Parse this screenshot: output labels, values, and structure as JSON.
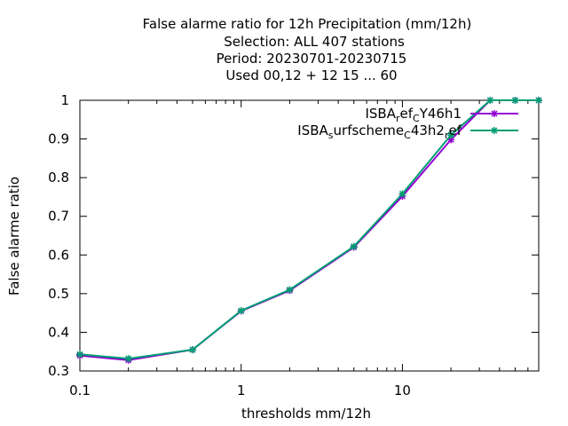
{
  "chart_data": {
    "type": "line",
    "title_lines": [
      "False alarme ratio  for 12h Precipitation (mm/12h)",
      "Selection: ALL    407 stations",
      "Period: 20230701-20230715",
      "Used  00,12  + 12 15 ... 60"
    ],
    "xlabel": "thresholds mm/12h",
    "ylabel": "False alarme ratio",
    "x_scale": "log",
    "xlim": [
      0.1,
      70
    ],
    "ylim": [
      0.3,
      1.0
    ],
    "x_tick_labels": [
      "0.1",
      "1",
      "10"
    ],
    "y_tick_labels": [
      "0.3",
      "0.4",
      "0.5",
      "0.6",
      "0.7",
      "0.8",
      "0.9",
      "1"
    ],
    "legend_position": "top-right",
    "grid": false,
    "x": [
      0.1,
      0.2,
      0.5,
      1,
      2,
      5,
      10,
      20,
      35,
      50,
      70
    ],
    "series": [
      {
        "legend_main": "ISBA",
        "legend_sub1": "r",
        "legend_mid": "ef",
        "legend_sub2": "C",
        "legend_tail": "Y46h1",
        "color": "#9400d3",
        "marker": "star",
        "values": [
          0.34,
          0.328,
          0.355,
          0.455,
          0.508,
          0.62,
          0.752,
          0.898,
          1.0,
          1.0,
          1.0
        ]
      },
      {
        "legend_main": "ISBA",
        "legend_sub1": "s",
        "legend_mid": "urfscheme",
        "legend_sub2": "C",
        "legend_tail": "43h2",
        "legend_sub3": "r",
        "legend_tail2": "ef",
        "color": "#009e73",
        "marker": "star",
        "values": [
          0.343,
          0.332,
          0.355,
          0.456,
          0.51,
          0.622,
          0.758,
          0.91,
          1.0,
          1.0,
          1.0
        ]
      }
    ]
  }
}
